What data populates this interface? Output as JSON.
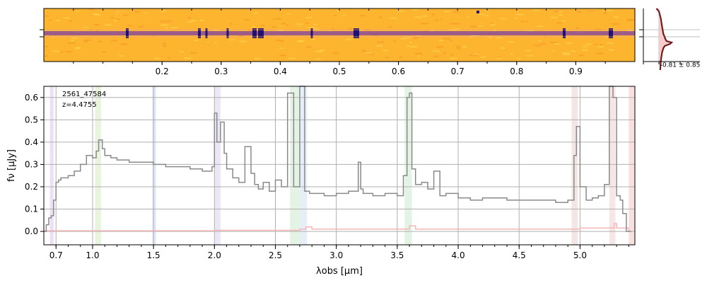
{
  "colors": {
    "spectrum": "#8a8a8a",
    "error": "#f4b6b6",
    "grid": "#b0b0b0",
    "profile_fill": "#f7c6c6",
    "profile_line": "#6e1e1e",
    "image_bg": "#fdb42f",
    "image_trace": "#7b3fa8",
    "image_line": "#e8a0a0"
  },
  "chart_data": [
    {
      "type": "heatmap",
      "name": "2D spectrum",
      "x_tick_labels": [
        "0.2",
        "0.3",
        "0.4",
        "0.5",
        "0.6",
        "0.7",
        "0.8",
        "0.9"
      ],
      "x_tick_values": [
        0.2,
        0.3,
        0.4,
        0.5,
        0.6,
        0.7,
        0.8,
        0.9
      ],
      "xlim": [
        0.0,
        1.0
      ]
    },
    {
      "type": "line",
      "name": "spatial profile",
      "annotation": "-0.81 ± 0.85"
    },
    {
      "type": "line",
      "name": "1D spectrum",
      "label_id": "2561_47584",
      "label_z": "z=4.4755",
      "xlabel": "λobs [μm]",
      "ylabel": "fν [μJy]",
      "xlim": [
        0.6,
        5.45
      ],
      "ylim": [
        -0.06,
        0.65
      ],
      "x_ticks": [
        0.7,
        1.0,
        1.5,
        2.0,
        2.5,
        3.0,
        3.5,
        4.0,
        4.5,
        5.0
      ],
      "x_tick_labels": [
        "0.7",
        "1.0",
        "1.5",
        "2.0",
        "2.5",
        "3.0",
        "3.5",
        "4.0",
        "4.5",
        "5.0"
      ],
      "y_ticks": [
        0.0,
        0.1,
        0.2,
        0.3,
        0.4,
        0.5,
        0.6
      ],
      "y_tick_labels": [
        "0.0",
        "0.1",
        "0.2",
        "0.3",
        "0.4",
        "0.5",
        "0.6"
      ],
      "grid": true,
      "series": [
        {
          "role": "flux",
          "x": [
            0.6,
            0.62,
            0.64,
            0.66,
            0.68,
            0.7,
            0.72,
            0.74,
            0.76,
            0.8,
            0.85,
            0.9,
            0.95,
            1.0,
            1.03,
            1.05,
            1.08,
            1.1,
            1.15,
            1.2,
            1.3,
            1.4,
            1.5,
            1.6,
            1.7,
            1.8,
            1.9,
            1.98,
            2.0,
            2.02,
            2.05,
            2.08,
            2.1,
            2.15,
            2.2,
            2.25,
            2.3,
            2.33,
            2.36,
            2.4,
            2.45,
            2.5,
            2.55,
            2.6,
            2.65,
            2.7,
            2.74,
            2.78,
            2.85,
            2.9,
            3.0,
            3.1,
            3.18,
            3.2,
            3.22,
            3.3,
            3.4,
            3.5,
            3.55,
            3.58,
            3.6,
            3.62,
            3.65,
            3.7,
            3.75,
            3.8,
            3.85,
            3.9,
            4.0,
            4.1,
            4.2,
            4.3,
            4.4,
            4.5,
            4.6,
            4.7,
            4.8,
            4.9,
            4.95,
            4.97,
            5.0,
            5.05,
            5.1,
            5.15,
            5.2,
            5.24,
            5.27,
            5.3,
            5.33,
            5.35,
            5.38,
            5.42
          ],
          "y": [
            0.0,
            0.03,
            0.06,
            0.07,
            0.14,
            0.22,
            0.23,
            0.24,
            0.24,
            0.25,
            0.27,
            0.3,
            0.34,
            0.33,
            0.36,
            0.41,
            0.37,
            0.34,
            0.33,
            0.32,
            0.31,
            0.31,
            0.3,
            0.29,
            0.29,
            0.28,
            0.27,
            0.29,
            0.53,
            0.4,
            0.49,
            0.35,
            0.28,
            0.24,
            0.22,
            0.38,
            0.26,
            0.21,
            0.19,
            0.22,
            0.18,
            0.23,
            0.2,
            0.62,
            0.2,
            0.65,
            0.18,
            0.17,
            0.17,
            0.16,
            0.17,
            0.18,
            0.31,
            0.19,
            0.17,
            0.16,
            0.17,
            0.16,
            0.25,
            0.6,
            0.62,
            0.28,
            0.21,
            0.22,
            0.19,
            0.27,
            0.16,
            0.17,
            0.15,
            0.14,
            0.15,
            0.15,
            0.14,
            0.14,
            0.14,
            0.14,
            0.13,
            0.14,
            0.34,
            0.47,
            0.2,
            0.14,
            0.15,
            0.16,
            0.21,
            0.65,
            0.6,
            0.16,
            0.14,
            0.08,
            0.0,
            0.0
          ]
        },
        {
          "role": "error",
          "x": [
            0.6,
            1.0,
            2.0,
            2.7,
            2.75,
            2.8,
            3.5,
            3.6,
            3.65,
            4.5,
            5.0,
            5.28,
            5.3,
            5.4
          ],
          "y": [
            0.003,
            0.003,
            0.005,
            0.01,
            0.02,
            0.01,
            0.01,
            0.025,
            0.01,
            0.01,
            0.015,
            0.035,
            0.015,
            0.0
          ]
        }
      ],
      "shaded_bands": [
        {
          "x0": 0.65,
          "x1": 0.68,
          "color": "#d8b8e8"
        },
        {
          "x0": 1.02,
          "x1": 1.07,
          "color": "#cfe6b8"
        },
        {
          "x0": 1.49,
          "x1": 1.52,
          "color": "#b8cce8"
        },
        {
          "x0": 2.0,
          "x1": 2.05,
          "color": "#d8c8ec"
        },
        {
          "x0": 2.62,
          "x1": 2.7,
          "color": "#c4e6c4"
        },
        {
          "x0": 2.7,
          "x1": 2.76,
          "color": "#c8dcef"
        },
        {
          "x0": 3.56,
          "x1": 3.62,
          "color": "#c4e6c4"
        },
        {
          "x0": 4.93,
          "x1": 4.98,
          "color": "#e8c8c8"
        },
        {
          "x0": 5.24,
          "x1": 5.29,
          "color": "#ecc8c8"
        },
        {
          "x0": 5.4,
          "x1": 5.45,
          "color": "#f4b8b8"
        }
      ]
    }
  ]
}
